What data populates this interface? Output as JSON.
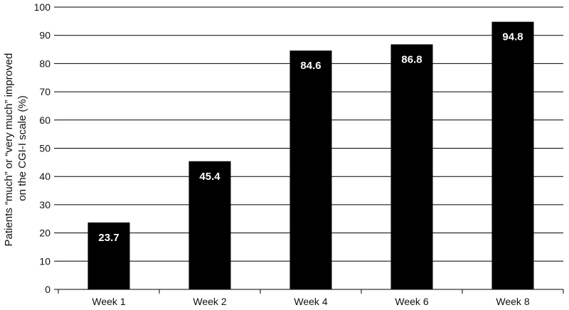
{
  "chart_data": {
    "type": "bar",
    "title": "",
    "xlabel": "",
    "ylabel_lines": [
      "Patients “much” or “very much” improved",
      "on the CGI-I scale (%)"
    ],
    "categories": [
      "Week 1",
      "Week 2",
      "Week 4",
      "Week 6",
      "Week 8"
    ],
    "values": [
      23.7,
      45.4,
      84.6,
      86.8,
      94.8
    ],
    "data_labels": [
      "23.7",
      "45.4",
      "84.6",
      "86.8",
      "94.8"
    ],
    "ylim": [
      0,
      100
    ],
    "yticks": [
      0,
      10,
      20,
      30,
      40,
      50,
      60,
      70,
      80,
      90,
      100
    ],
    "grid": true,
    "legend": "none",
    "bar_color": "#000000",
    "label_color": "#ffffff",
    "grid_color": "#000000"
  }
}
